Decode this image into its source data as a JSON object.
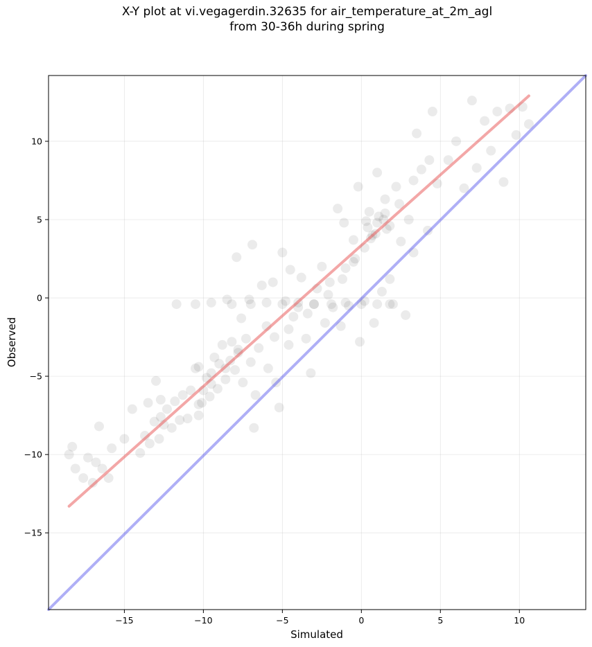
{
  "chart_data": {
    "type": "scatter",
    "title_lines": [
      "X-Y plot at vi.vegagerdin.32635 for air_temperature_at_2m_agl",
      "from 30-36h during spring"
    ],
    "xlabel": "Simulated",
    "ylabel": "Observed",
    "xlim": [
      -19.8,
      14.2
    ],
    "ylim": [
      -19.9,
      14.2
    ],
    "xticks": [
      -15,
      -10,
      -5,
      0,
      5,
      10
    ],
    "yticks": [
      -15,
      -10,
      -5,
      0,
      5,
      10
    ],
    "xtick_labels": [
      "−15",
      "−10",
      "−5",
      "0",
      "5",
      "10"
    ],
    "ytick_labels": [
      "−15",
      "−10",
      "−5",
      "0",
      "5",
      "10"
    ],
    "grid": true,
    "point_color": "#000000",
    "point_alpha": 0.08,
    "points": [
      [
        -18.5,
        -10.0
      ],
      [
        -18.3,
        -9.5
      ],
      [
        -18.1,
        -10.9
      ],
      [
        -17.6,
        -11.5
      ],
      [
        -17.3,
        -10.2
      ],
      [
        -17.0,
        -11.8
      ],
      [
        -16.8,
        -10.5
      ],
      [
        -16.6,
        -8.2
      ],
      [
        -16.4,
        -10.9
      ],
      [
        -16.0,
        -11.5
      ],
      [
        -15.8,
        -9.6
      ],
      [
        -15.0,
        -9.0
      ],
      [
        -14.5,
        -7.1
      ],
      [
        -14.0,
        -9.9
      ],
      [
        -13.7,
        -8.8
      ],
      [
        -13.5,
        -6.7
      ],
      [
        -13.4,
        -9.3
      ],
      [
        -13.1,
        -7.9
      ],
      [
        -13.0,
        -5.3
      ],
      [
        -12.8,
        -9.0
      ],
      [
        -12.7,
        -7.6
      ],
      [
        -12.7,
        -6.5
      ],
      [
        -12.5,
        -8.1
      ],
      [
        -12.3,
        -7.1
      ],
      [
        -12.0,
        -8.3
      ],
      [
        -11.8,
        -6.6
      ],
      [
        -11.5,
        -7.8
      ],
      [
        -11.3,
        -6.2
      ],
      [
        -11.0,
        -7.7
      ],
      [
        -10.8,
        -5.9
      ],
      [
        -10.5,
        -4.5
      ],
      [
        -10.3,
        -7.5
      ],
      [
        -10.3,
        -4.4
      ],
      [
        -10.1,
        -6.7
      ],
      [
        -10.0,
        -5.9
      ],
      [
        -9.8,
        -5.1
      ],
      [
        -9.6,
        -6.3
      ],
      [
        -9.5,
        -4.8
      ],
      [
        -9.3,
        -3.8
      ],
      [
        -9.1,
        -5.8
      ],
      [
        -9.0,
        -4.2
      ],
      [
        -8.8,
        -3.0
      ],
      [
        -8.6,
        -5.2
      ],
      [
        -8.5,
        -0.1
      ],
      [
        -8.3,
        -4.0
      ],
      [
        -8.2,
        -2.8
      ],
      [
        -8.0,
        -4.6
      ],
      [
        -7.9,
        2.6
      ],
      [
        -7.8,
        -3.5
      ],
      [
        -7.6,
        -1.3
      ],
      [
        -7.5,
        -5.4
      ],
      [
        -7.3,
        -2.6
      ],
      [
        -7.1,
        -0.1
      ],
      [
        -7.0,
        -4.1
      ],
      [
        -6.9,
        3.4
      ],
      [
        -6.8,
        -8.3
      ],
      [
        -6.7,
        -6.2
      ],
      [
        -6.5,
        -3.2
      ],
      [
        -6.3,
        0.8
      ],
      [
        -6.0,
        -1.8
      ],
      [
        -5.9,
        -4.5
      ],
      [
        -5.6,
        1.0
      ],
      [
        -5.5,
        -2.5
      ],
      [
        -5.4,
        -5.4
      ],
      [
        -5.2,
        -7.0
      ],
      [
        -5.0,
        2.9
      ],
      [
        -4.8,
        -0.2
      ],
      [
        -4.6,
        -3.0
      ],
      [
        -4.5,
        1.8
      ],
      [
        -4.3,
        -1.2
      ],
      [
        -4.0,
        -0.6
      ],
      [
        -3.8,
        1.3
      ],
      [
        -3.5,
        -2.6
      ],
      [
        -3.2,
        -4.8
      ],
      [
        -3.0,
        -0.4
      ],
      [
        -2.8,
        0.6
      ],
      [
        -2.5,
        2.0
      ],
      [
        -2.3,
        -1.6
      ],
      [
        -2.0,
        1.0
      ],
      [
        -1.8,
        -0.6
      ],
      [
        -1.5,
        5.7
      ],
      [
        -1.3,
        -1.8
      ],
      [
        -1.1,
        4.8
      ],
      [
        -1.0,
        1.9
      ],
      [
        -0.8,
        -0.5
      ],
      [
        -0.5,
        3.7
      ],
      [
        -0.4,
        2.5
      ],
      [
        -0.2,
        7.1
      ],
      [
        -0.1,
        -2.8
      ],
      [
        0.2,
        -0.2
      ],
      [
        0.4,
        4.5
      ],
      [
        0.6,
        3.8
      ],
      [
        0.8,
        -1.6
      ],
      [
        1.0,
        8.0
      ],
      [
        1.1,
        5.2
      ],
      [
        1.3,
        0.4
      ],
      [
        1.5,
        6.3
      ],
      [
        1.6,
        4.4
      ],
      [
        1.8,
        1.2
      ],
      [
        2.0,
        -0.4
      ],
      [
        2.2,
        7.1
      ],
      [
        2.5,
        3.6
      ],
      [
        2.8,
        -1.1
      ],
      [
        3.0,
        5.0
      ],
      [
        3.3,
        2.9
      ],
      [
        3.5,
        10.5
      ],
      [
        3.8,
        8.2
      ],
      [
        4.2,
        4.3
      ],
      [
        4.5,
        11.9
      ],
      [
        4.8,
        7.3
      ],
      [
        5.5,
        8.8
      ],
      [
        6.0,
        10.0
      ],
      [
        6.5,
        7.0
      ],
      [
        7.0,
        12.6
      ],
      [
        7.3,
        8.3
      ],
      [
        7.8,
        11.3
      ],
      [
        8.2,
        9.4
      ],
      [
        8.6,
        11.9
      ],
      [
        9.0,
        7.4
      ],
      [
        9.4,
        12.1
      ],
      [
        9.8,
        10.4
      ],
      [
        10.2,
        12.2
      ],
      [
        10.6,
        11.1
      ],
      [
        -11.7,
        -0.4
      ],
      [
        -10.5,
        -0.4
      ],
      [
        -9.5,
        -0.3
      ],
      [
        -8.2,
        -0.4
      ],
      [
        -7.0,
        -0.4
      ],
      [
        -6.0,
        -0.3
      ],
      [
        -5.0,
        -0.4
      ],
      [
        -4.0,
        -0.3
      ],
      [
        -3.0,
        -0.4
      ],
      [
        -1.9,
        -0.4
      ],
      [
        -1.0,
        -0.3
      ],
      [
        0.0,
        -0.4
      ],
      [
        1.0,
        -0.4
      ],
      [
        1.8,
        -0.4
      ],
      [
        0.5,
        5.5
      ],
      [
        1.4,
        5.0
      ],
      [
        0.9,
        4.1
      ]
    ],
    "cluster_points": [
      [
        1.0,
        4.8
      ],
      [
        1.5,
        5.4
      ],
      [
        0.7,
        4.0
      ],
      [
        0.2,
        3.2
      ],
      [
        -0.5,
        2.3
      ],
      [
        2.4,
        6.0
      ],
      [
        -1.2,
        1.2
      ],
      [
        -2.1,
        0.2
      ],
      [
        -3.4,
        -1.0
      ],
      [
        -8.6,
        -4.5
      ],
      [
        -9.5,
        -5.5
      ],
      [
        -10.3,
        -6.8
      ],
      [
        3.3,
        7.5
      ],
      [
        4.3,
        8.8
      ],
      [
        -7.8,
        -3.3
      ],
      [
        -4.6,
        -2.0
      ],
      [
        1.8,
        4.6
      ],
      [
        0.3,
        4.9
      ]
    ],
    "fit_line": {
      "color": "#e85050",
      "alpha": 0.5,
      "from": [
        -18.5,
        -13.3
      ],
      "to": [
        10.6,
        12.9
      ]
    },
    "identity_line": {
      "color": "#4d4dec",
      "alpha": 0.45,
      "from": [
        -19.8,
        -19.9
      ],
      "to": [
        14.2,
        14.2
      ]
    }
  }
}
